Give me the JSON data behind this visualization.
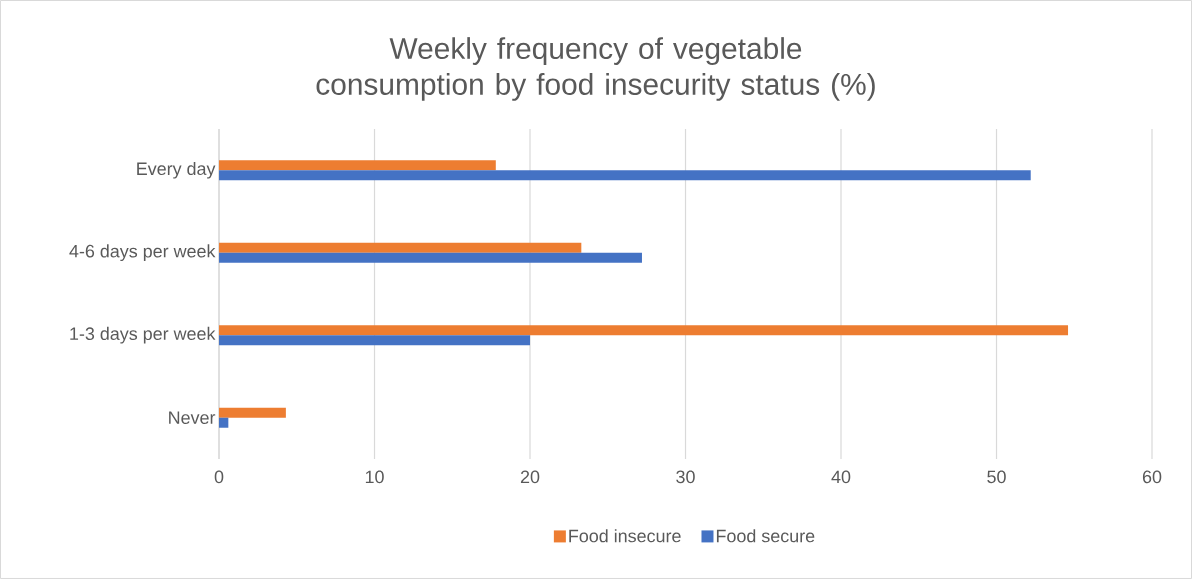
{
  "chart_data": {
    "type": "bar",
    "orientation": "horizontal",
    "title": "Weekly frequency of vegetable consumption by food insecurity status (%)",
    "categories": [
      "Every day",
      "4-6 days per week",
      "1-3 days per week",
      "Never"
    ],
    "series": [
      {
        "name": "Food insecure",
        "color": "#ed7d31",
        "values": [
          17.8,
          23.3,
          54.6,
          4.3
        ]
      },
      {
        "name": "Food secure",
        "color": "#4472c4",
        "values": [
          52.2,
          27.2,
          20.0,
          0.6
        ]
      }
    ],
    "xlim": [
      0,
      60
    ],
    "xticks": [
      0,
      10,
      20,
      30,
      40,
      50,
      60
    ],
    "grid": "x",
    "legend": "bottom"
  }
}
